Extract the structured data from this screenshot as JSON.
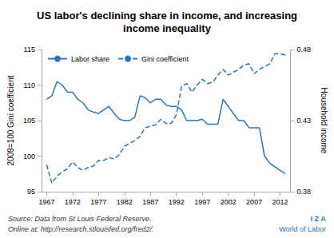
{
  "chart_data": {
    "type": "line",
    "title": "US labor's declining share in income, and increasing\nincome inequality",
    "ylabel": "2009=100 Gini coefficient",
    "y2label": "Household income",
    "annotations": [
      "Source: Data from St Louis Federal Reserve.",
      "Online at: http://research.stlouisfed.org/fred2/.",
      "I Z A",
      "World of Labor"
    ],
    "color": "#2e74b5",
    "x": [
      1967,
      1968,
      1969,
      1970,
      1971,
      1972,
      1973,
      1974,
      1975,
      1976,
      1977,
      1978,
      1979,
      1980,
      1981,
      1982,
      1983,
      1984,
      1985,
      1986,
      1987,
      1988,
      1989,
      1990,
      1991,
      1992,
      1993,
      1994,
      1995,
      1996,
      1997,
      1998,
      1999,
      2000,
      2001,
      2002,
      2003,
      2004,
      2005,
      2006,
      2007,
      2008,
      2009,
      2010,
      2011,
      2012,
      2013
    ],
    "series": [
      {
        "name": "Labor share",
        "line_style": "solid",
        "values": [
          108.0,
          108.5,
          110.5,
          110.0,
          109.0,
          109.0,
          108.0,
          107.5,
          106.5,
          106.2,
          106.0,
          106.5,
          107.0,
          106.0,
          105.2,
          105.0,
          105.0,
          105.5,
          108.5,
          108.2,
          107.5,
          108.0,
          108.0,
          107.2,
          107.0,
          107.0,
          106.5,
          105.0,
          105.0,
          105.0,
          105.2,
          104.5,
          104.5,
          104.5,
          108.0,
          107.0,
          106.0,
          105.0,
          105.0,
          104.0,
          104.0,
          104.0,
          100.0,
          99.0,
          98.5,
          98.0,
          97.5
        ]
      },
      {
        "name": "Gini coefficient",
        "line_style": "dashed",
        "axis": "y2",
        "values": [
          0.399,
          0.386,
          0.391,
          0.394,
          0.396,
          0.401,
          0.397,
          0.395,
          0.397,
          0.398,
          0.402,
          0.402,
          0.404,
          0.403,
          0.406,
          0.412,
          0.414,
          0.416,
          0.419,
          0.425,
          0.426,
          0.427,
          0.431,
          0.428,
          0.428,
          0.434,
          0.454,
          0.456,
          0.45,
          0.455,
          0.459,
          0.456,
          0.457,
          0.462,
          0.466,
          0.462,
          0.464,
          0.466,
          0.469,
          0.47,
          0.463,
          0.466,
          0.468,
          0.47,
          0.477,
          0.477,
          0.476
        ]
      }
    ],
    "xlim": [
      1966,
      2014
    ],
    "xticks": [
      1967,
      1972,
      1977,
      1982,
      1987,
      1992,
      1997,
      2002,
      2007,
      2012
    ],
    "ylim": [
      95,
      115
    ],
    "yticks": [
      95,
      100,
      105,
      110,
      115
    ],
    "y2lim": [
      0.38,
      0.48
    ],
    "y2ticks": [
      0.38,
      0.43,
      0.48
    ],
    "grid": false,
    "legend": "upper left"
  }
}
